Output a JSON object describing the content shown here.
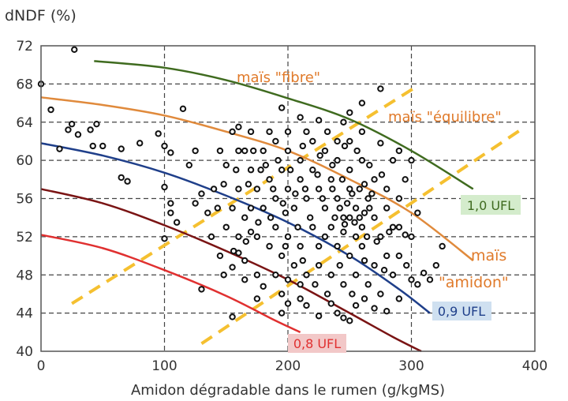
{
  "chart_data": {
    "type": "scatter",
    "ylabel": "dNDF (%)",
    "xlabel": "Amidon dégradable dans le rumen (g/kgMS)",
    "xlim": [
      0,
      400
    ],
    "ylim": [
      40,
      72
    ],
    "xticks": [
      0,
      100,
      200,
      300,
      400
    ],
    "yticks": [
      40,
      44,
      48,
      52,
      56,
      60,
      64,
      68,
      72
    ],
    "grid": true,
    "points": [
      [
        0,
        68
      ],
      [
        27,
        71.6
      ],
      [
        8,
        65.3
      ],
      [
        25,
        63.8
      ],
      [
        22,
        63.2
      ],
      [
        45,
        63.8
      ],
      [
        40,
        63.2
      ],
      [
        30,
        62.7
      ],
      [
        15,
        61.2
      ],
      [
        42,
        61.5
      ],
      [
        50,
        61.5
      ],
      [
        65,
        61.2
      ],
      [
        65,
        58.2
      ],
      [
        70,
        57.8
      ],
      [
        80,
        61.8
      ],
      [
        95,
        62.8
      ],
      [
        100,
        61.5
      ],
      [
        105,
        60.8
      ],
      [
        115,
        65.4
      ],
      [
        100,
        57.2
      ],
      [
        105,
        55.5
      ],
      [
        105,
        54.5
      ],
      [
        100,
        51.8
      ],
      [
        110,
        53.5
      ],
      [
        125,
        55.5
      ],
      [
        135,
        54.5
      ],
      [
        130,
        56.5
      ],
      [
        120,
        59.5
      ],
      [
        125,
        61
      ],
      [
        145,
        61
      ],
      [
        155,
        63
      ],
      [
        160,
        63.5
      ],
      [
        150,
        59.5
      ],
      [
        140,
        57
      ],
      [
        145,
        50
      ],
      [
        155,
        48.8
      ],
      [
        160,
        50.3
      ],
      [
        170,
        52.5
      ],
      [
        175,
        45.5
      ],
      [
        180,
        46.8
      ],
      [
        195,
        46
      ],
      [
        200,
        45
      ],
      [
        210,
        47
      ],
      [
        215,
        44.8
      ],
      [
        225,
        43.7
      ],
      [
        235,
        45
      ],
      [
        240,
        44
      ],
      [
        245,
        43.5
      ],
      [
        250,
        43.2
      ],
      [
        255,
        44.8
      ],
      [
        270,
        44.5
      ],
      [
        280,
        44.2
      ],
      [
        290,
        45.5
      ],
      [
        300,
        47.5
      ],
      [
        305,
        47
      ],
      [
        310,
        48.2
      ],
      [
        315,
        47.5
      ],
      [
        320,
        49
      ],
      [
        325,
        51
      ],
      [
        300,
        52
      ],
      [
        295,
        52.2
      ],
      [
        290,
        53
      ],
      [
        305,
        54.5
      ],
      [
        275,
        67.5
      ],
      [
        260,
        66
      ],
      [
        250,
        65
      ],
      [
        245,
        64
      ],
      [
        225,
        64.2
      ],
      [
        210,
        64.5
      ],
      [
        195,
        65.5
      ],
      [
        260,
        63
      ],
      [
        275,
        61.8
      ],
      [
        290,
        61
      ],
      [
        300,
        60
      ],
      [
        155,
        43.6
      ],
      [
        130,
        46.5
      ],
      [
        165,
        47.5
      ],
      [
        185,
        58
      ],
      [
        190,
        56
      ],
      [
        195,
        59
      ],
      [
        200,
        57
      ],
      [
        205,
        55
      ],
      [
        210,
        58
      ],
      [
        215,
        56
      ],
      [
        220,
        59
      ],
      [
        225,
        57
      ],
      [
        230,
        55
      ],
      [
        235,
        58
      ],
      [
        240,
        56
      ],
      [
        245,
        54
      ],
      [
        250,
        57
      ],
      [
        255,
        55
      ],
      [
        260,
        53
      ],
      [
        265,
        56
      ],
      [
        270,
        54
      ],
      [
        275,
        52
      ],
      [
        280,
        55
      ],
      [
        285,
        53
      ],
      [
        190,
        53
      ],
      [
        200,
        52
      ],
      [
        210,
        51
      ],
      [
        220,
        53
      ],
      [
        230,
        52
      ],
      [
        240,
        51
      ],
      [
        250,
        50
      ],
      [
        260,
        51
      ],
      [
        270,
        49
      ],
      [
        280,
        50
      ],
      [
        180,
        55
      ],
      [
        175,
        57
      ],
      [
        170,
        59
      ],
      [
        165,
        61
      ],
      [
        170,
        55
      ],
      [
        175,
        52
      ],
      [
        185,
        51
      ],
      [
        195,
        50
      ],
      [
        205,
        49
      ],
      [
        215,
        48
      ],
      [
        225,
        49
      ],
      [
        235,
        48
      ],
      [
        245,
        47
      ],
      [
        255,
        48
      ],
      [
        265,
        47
      ],
      [
        275,
        46
      ],
      [
        285,
        48
      ],
      [
        180,
        61
      ],
      [
        190,
        62
      ],
      [
        200,
        61
      ],
      [
        210,
        60
      ],
      [
        220,
        62
      ],
      [
        230,
        61
      ],
      [
        240,
        60
      ],
      [
        250,
        59
      ],
      [
        260,
        60
      ],
      [
        270,
        58
      ],
      [
        280,
        57
      ],
      [
        290,
        56
      ],
      [
        295,
        58
      ],
      [
        285,
        60
      ],
      [
        240,
        62
      ],
      [
        250,
        62
      ],
      [
        232,
        63
      ],
      [
        215,
        63
      ],
      [
        200,
        63
      ],
      [
        185,
        63
      ],
      [
        170,
        63
      ],
      [
        160,
        61
      ],
      [
        160,
        57
      ],
      [
        165,
        54
      ],
      [
        155,
        55
      ],
      [
        150,
        53
      ],
      [
        160,
        52
      ],
      [
        190,
        48
      ],
      [
        200,
        47.5
      ],
      [
        225,
        51
      ],
      [
        235,
        53
      ],
      [
        245,
        52.5
      ],
      [
        255,
        52
      ],
      [
        248,
        55.5
      ],
      [
        252,
        56.5
      ],
      [
        258,
        57
      ],
      [
        262,
        54.5
      ],
      [
        244,
        58
      ],
      [
        238,
        54
      ],
      [
        228,
        56
      ],
      [
        218,
        54
      ],
      [
        208,
        53
      ],
      [
        198,
        54.5
      ],
      [
        188,
        57
      ],
      [
        178,
        59
      ],
      [
        168,
        57.5
      ],
      [
        158,
        59
      ],
      [
        148,
        57.5
      ],
      [
        143,
        55
      ],
      [
        138,
        52
      ],
      [
        148,
        48
      ],
      [
        165,
        49.5
      ],
      [
        175,
        48
      ],
      [
        195,
        44
      ],
      [
        210,
        45.5
      ],
      [
        232,
        46
      ],
      [
        242,
        49
      ],
      [
        262,
        49.5
      ],
      [
        272,
        51.5
      ],
      [
        282,
        52.5
      ],
      [
        290,
        50
      ],
      [
        296,
        49
      ],
      [
        268,
        56.5
      ],
      [
        276,
        58.5
      ],
      [
        266,
        59.5
      ],
      [
        256,
        61
      ],
      [
        246,
        61.5
      ],
      [
        236,
        59.5
      ],
      [
        226,
        60.5
      ],
      [
        212,
        61.5
      ],
      [
        202,
        59
      ],
      [
        192,
        60
      ],
      [
        182,
        59.5
      ],
      [
        172,
        61
      ],
      [
        254,
        53.5
      ],
      [
        264,
        52
      ],
      [
        242,
        55
      ],
      [
        236,
        57
      ],
      [
        224,
        58.5
      ],
      [
        214,
        57
      ],
      [
        206,
        56.5
      ],
      [
        196,
        55.5
      ],
      [
        186,
        54
      ],
      [
        176,
        53.5
      ],
      [
        166,
        51.5
      ],
      [
        156,
        50.5
      ],
      [
        198,
        51
      ],
      [
        212,
        49.5
      ],
      [
        222,
        47
      ],
      [
        252,
        46
      ],
      [
        262,
        45.5
      ],
      [
        278,
        48.5
      ],
      [
        258,
        54
      ],
      [
        250,
        54
      ],
      [
        246,
        53.3
      ],
      [
        266,
        55
      ],
      [
        262,
        57.5
      ]
    ],
    "curves": [
      {
        "name": "1,0 UFL",
        "color": "#3f6b1f",
        "label_bg": "#d4eccc",
        "points": [
          [
            43,
            70.4
          ],
          [
            100,
            69.7
          ],
          [
            150,
            68.4
          ],
          [
            200,
            66.5
          ],
          [
            250,
            64.3
          ],
          [
            300,
            61
          ],
          [
            350,
            57
          ]
        ]
      },
      {
        "name": "maïs \"amidon\"",
        "color": "#e08a3c",
        "points": [
          [
            0,
            66.6
          ],
          [
            50,
            65.8
          ],
          [
            100,
            64.7
          ],
          [
            150,
            63
          ],
          [
            200,
            61
          ],
          [
            250,
            58
          ],
          [
            300,
            54.5
          ],
          [
            350,
            49.5
          ]
        ]
      },
      {
        "name": "0,9 UFL",
        "color": "#1f3f8a",
        "label_bg": "#cfe0f0",
        "points": [
          [
            0,
            61.8
          ],
          [
            50,
            60.5
          ],
          [
            100,
            58.7
          ],
          [
            150,
            56.3
          ],
          [
            200,
            53.5
          ],
          [
            250,
            50
          ],
          [
            290,
            46.5
          ],
          [
            315,
            44
          ]
        ]
      },
      {
        "name": "",
        "color": "#7a1414",
        "points": [
          [
            0,
            57
          ],
          [
            50,
            55.5
          ],
          [
            100,
            53.2
          ],
          [
            150,
            50.5
          ],
          [
            200,
            47.5
          ],
          [
            250,
            44
          ],
          [
            285,
            41.5
          ],
          [
            308,
            40
          ]
        ]
      },
      {
        "name": "0,8 UFL",
        "color": "#e03030",
        "label_bg": "#f2c8c8",
        "points": [
          [
            0,
            52.2
          ],
          [
            50,
            50.8
          ],
          [
            100,
            48.5
          ],
          [
            150,
            45.8
          ],
          [
            190,
            43.2
          ],
          [
            210,
            42
          ]
        ]
      }
    ],
    "dashed_lines": [
      {
        "color": "#f5c030",
        "points": [
          [
            25,
            45
          ],
          [
            305,
            67.8
          ]
        ]
      },
      {
        "color": "#f5c030",
        "points": [
          [
            130,
            40.8
          ],
          [
            392,
            63.5
          ]
        ]
      }
    ],
    "annotations": {
      "fibre": "maïs \"fibre\"",
      "equilibre": "maïs \"équilibre\"",
      "amidon_1": "maïs",
      "amidon_2": "\"amidon\"",
      "ufl10": "1,0 UFL",
      "ufl09": "0,9 UFL",
      "ufl08": "0,8 UFL"
    },
    "annotation_color": "#e07a2a"
  }
}
